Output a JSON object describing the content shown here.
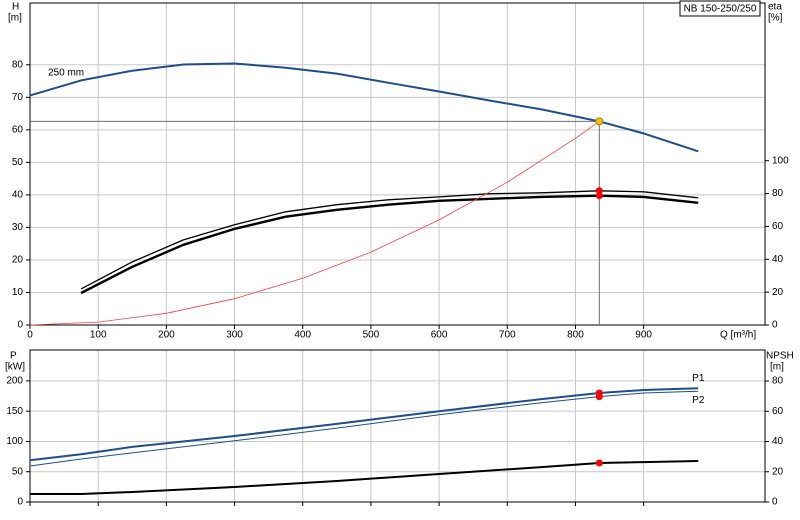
{
  "chart_data": [
    {
      "type": "line",
      "title": "NB 150-250/250",
      "annotation": "250 mm",
      "ylabel": "H",
      "ylabel_unit": "[m]",
      "y2label": "eta",
      "y2label_unit": "[%]",
      "xlabel": "Q [m³/h]",
      "xlim": [
        0,
        1078
      ],
      "xticks": [
        0,
        100,
        200,
        300,
        400,
        500,
        600,
        700,
        800,
        900
      ],
      "ylim": [
        0,
        99
      ],
      "yticks": [
        0,
        10,
        20,
        30,
        40,
        50,
        60,
        70,
        80
      ],
      "y2lim": [
        0,
        196
      ],
      "y2ticks": [
        0,
        20,
        40,
        60,
        80,
        100
      ],
      "grid": true,
      "duty_x": 835,
      "duty_guide_color": "#707070",
      "series": [
        {
          "x": [
            0,
            75,
            150,
            225,
            300,
            375,
            450,
            525,
            600,
            675,
            750,
            835,
            900,
            980
          ],
          "values": [
            70.6,
            75.2,
            78.2,
            80.1,
            80.4,
            79.1,
            77.3,
            74.5,
            71.8,
            69.0,
            66.3,
            62.6,
            58.9,
            53.4
          ],
          "color": "#1f4e8c",
          "line_width": 2,
          "duty_marker": "#ffc000"
        },
        {
          "x": [
            75,
            150,
            225,
            300,
            375,
            450,
            525,
            600,
            675,
            750,
            835,
            900,
            980
          ],
          "values": [
            22,
            38.4,
            51.8,
            61,
            68.9,
            73.2,
            76.2,
            78,
            79.9,
            80.5,
            81.7,
            81.1,
            77.4
          ],
          "axis": "y2",
          "color": "#000000",
          "line_width": 1.3,
          "duty_marker": "#ff0000"
        },
        {
          "x": [
            75,
            150,
            225,
            300,
            375,
            450,
            525,
            600,
            675,
            750,
            835,
            900,
            980
          ],
          "values": [
            19.5,
            35.4,
            48.8,
            58.5,
            65.9,
            70.1,
            73.2,
            75.6,
            76.8,
            78,
            78.7,
            78,
            74.4
          ],
          "axis": "y2",
          "color": "#000000",
          "line_width": 2.4,
          "duty_marker": "#ff0000"
        },
        {
          "x": [
            0,
            100,
            200,
            300,
            400,
            500,
            600,
            700,
            800,
            835
          ],
          "values": [
            0,
            0.9,
            3.6,
            8.1,
            14.4,
            22.4,
            32.3,
            43.9,
            57.4,
            62.6
          ],
          "color": "#ff4040",
          "line_width": 0.8
        }
      ]
    },
    {
      "type": "line",
      "ylabel": "P",
      "ylabel_unit": "[kW]",
      "y2label": "NPSH",
      "y2label_unit": "[m]",
      "xlim": [
        0,
        1078
      ],
      "xticks": [
        0,
        100,
        200,
        300,
        400,
        500,
        600,
        700,
        800,
        900
      ],
      "ylim": [
        0,
        251
      ],
      "yticks": [
        0,
        50,
        100,
        150,
        200
      ],
      "y2lim": [
        0,
        100.5
      ],
      "y2ticks": [
        0,
        20,
        40,
        60,
        80
      ],
      "grid": true,
      "duty_x": 835,
      "series": [
        {
          "name": "P1",
          "x": [
            0,
            75,
            150,
            300,
            450,
            600,
            750,
            835,
            900,
            980
          ],
          "values": [
            69,
            79,
            91,
            109,
            129,
            150,
            170,
            180,
            185,
            188
          ],
          "color": "#1f4e8c",
          "line_width": 2,
          "duty_marker": "#ff0000"
        },
        {
          "name": "P2",
          "x": [
            0,
            75,
            150,
            300,
            450,
            600,
            750,
            835,
            900,
            980
          ],
          "values": [
            59.5,
            71,
            81,
            101,
            122,
            144,
            164,
            174,
            180,
            183
          ],
          "color": "#1f4e8c",
          "line_width": 1,
          "duty_marker": "#ff0000"
        },
        {
          "x": [
            0,
            75,
            150,
            300,
            450,
            600,
            750,
            835,
            900,
            980
          ],
          "values": [
            5.3,
            5.3,
            6.6,
            9.9,
            13.9,
            18.5,
            23.1,
            25.8,
            26.4,
            27.1
          ],
          "axis": "y2",
          "color": "#000000",
          "line_width": 2,
          "duty_marker": "#ff0000"
        }
      ]
    }
  ]
}
